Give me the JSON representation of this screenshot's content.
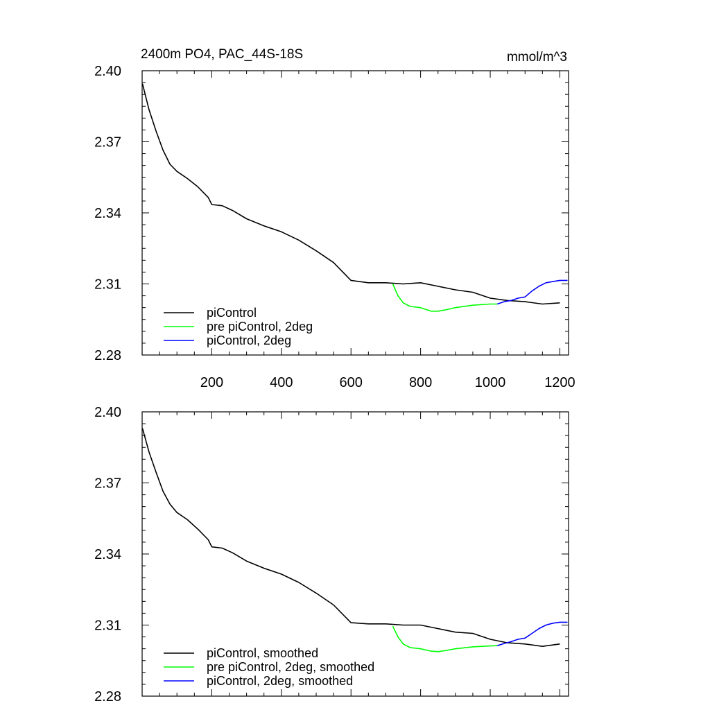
{
  "chart_data": [
    {
      "type": "line",
      "title": "2400m PO4, PAC_44S-18S",
      "units": "mmol/m^3",
      "xlim": [
        0,
        1225
      ],
      "ylim": [
        2.28,
        2.4
      ],
      "xticks": [
        200,
        400,
        600,
        800,
        1000,
        1200
      ],
      "xtick_labels": [
        "200",
        "400",
        "600",
        "800",
        "1000",
        "1200"
      ],
      "yticks": [
        2.28,
        2.31,
        2.34,
        2.37,
        2.4
      ],
      "ytick_labels": [
        "2.28",
        "2.31",
        "2.34",
        "2.37",
        "2.40"
      ],
      "legend_position": "bottom-left",
      "series": [
        {
          "name": "piControl",
          "color": "#000000",
          "x": [
            1,
            20,
            40,
            60,
            80,
            100,
            130,
            160,
            190,
            200,
            230,
            260,
            300,
            350,
            400,
            450,
            500,
            550,
            600,
            650,
            700,
            750,
            800,
            850,
            900,
            950,
            1000,
            1050,
            1100,
            1150,
            1200
          ],
          "y": [
            2.3945,
            2.3835,
            2.3745,
            2.3665,
            2.3605,
            2.3575,
            2.3545,
            2.351,
            2.3465,
            2.3435,
            2.343,
            2.341,
            2.3375,
            2.3345,
            2.332,
            2.3285,
            2.324,
            2.319,
            2.3115,
            2.3105,
            2.3105,
            2.31,
            2.3105,
            2.309,
            2.3075,
            2.3065,
            2.304,
            2.303,
            2.3025,
            2.3015,
            2.302
          ]
        },
        {
          "name": "pre piControl, 2deg",
          "color": "#00ff00",
          "x": [
            720,
            735,
            750,
            770,
            800,
            830,
            850,
            870,
            900,
            950,
            1000,
            1020
          ],
          "y": [
            2.31,
            2.305,
            2.302,
            2.3005,
            2.3,
            2.2985,
            2.2985,
            2.299,
            2.3,
            2.301,
            2.3015,
            2.3015
          ]
        },
        {
          "name": "piControl, 2deg",
          "color": "#0000ff",
          "x": [
            1020,
            1040,
            1060,
            1080,
            1100,
            1120,
            1140,
            1160,
            1180,
            1200,
            1222
          ],
          "y": [
            2.3015,
            2.3025,
            2.303,
            2.304,
            2.3045,
            2.307,
            2.309,
            2.3105,
            2.311,
            2.3115,
            2.3115
          ]
        }
      ]
    },
    {
      "type": "line",
      "title": "",
      "xlim": [
        0,
        1225
      ],
      "ylim": [
        2.28,
        2.4
      ],
      "xticks": [
        200,
        400,
        600,
        800,
        1000,
        1200
      ],
      "yticks": [
        2.28,
        2.31,
        2.34,
        2.37,
        2.4
      ],
      "ytick_labels": [
        "2.28",
        "2.31",
        "2.34",
        "2.37",
        "2.40"
      ],
      "legend_position": "bottom-left",
      "series": [
        {
          "name": "piControl, smoothed",
          "color": "#000000",
          "x": [
            1,
            20,
            40,
            60,
            80,
            100,
            130,
            160,
            190,
            200,
            230,
            260,
            300,
            350,
            400,
            450,
            500,
            550,
            600,
            650,
            700,
            750,
            800,
            850,
            900,
            950,
            1000,
            1050,
            1100,
            1150,
            1200
          ],
          "y": [
            2.393,
            2.383,
            2.3745,
            2.3665,
            2.361,
            2.3575,
            2.3545,
            2.3505,
            2.346,
            2.343,
            2.3425,
            2.3405,
            2.337,
            2.334,
            2.3315,
            2.328,
            2.3235,
            2.3185,
            2.311,
            2.3105,
            2.3105,
            2.31,
            2.31,
            2.3085,
            2.307,
            2.3065,
            2.304,
            2.3025,
            2.302,
            2.301,
            2.302
          ]
        },
        {
          "name": "pre piControl, 2deg, smoothed",
          "color": "#00ff00",
          "x": [
            720,
            735,
            750,
            770,
            800,
            830,
            850,
            870,
            900,
            950,
            1000,
            1020
          ],
          "y": [
            2.3095,
            2.305,
            2.302,
            2.3005,
            2.3,
            2.299,
            2.2988,
            2.2992,
            2.3,
            2.3008,
            2.3012,
            2.3013
          ]
        },
        {
          "name": "piControl, 2deg, smoothed",
          "color": "#0000ff",
          "x": [
            1020,
            1040,
            1060,
            1080,
            1100,
            1120,
            1140,
            1160,
            1180,
            1200,
            1222
          ],
          "y": [
            2.3013,
            2.3022,
            2.303,
            2.304,
            2.3045,
            2.3065,
            2.3085,
            2.31,
            2.3108,
            2.3112,
            2.3112
          ]
        }
      ]
    }
  ]
}
